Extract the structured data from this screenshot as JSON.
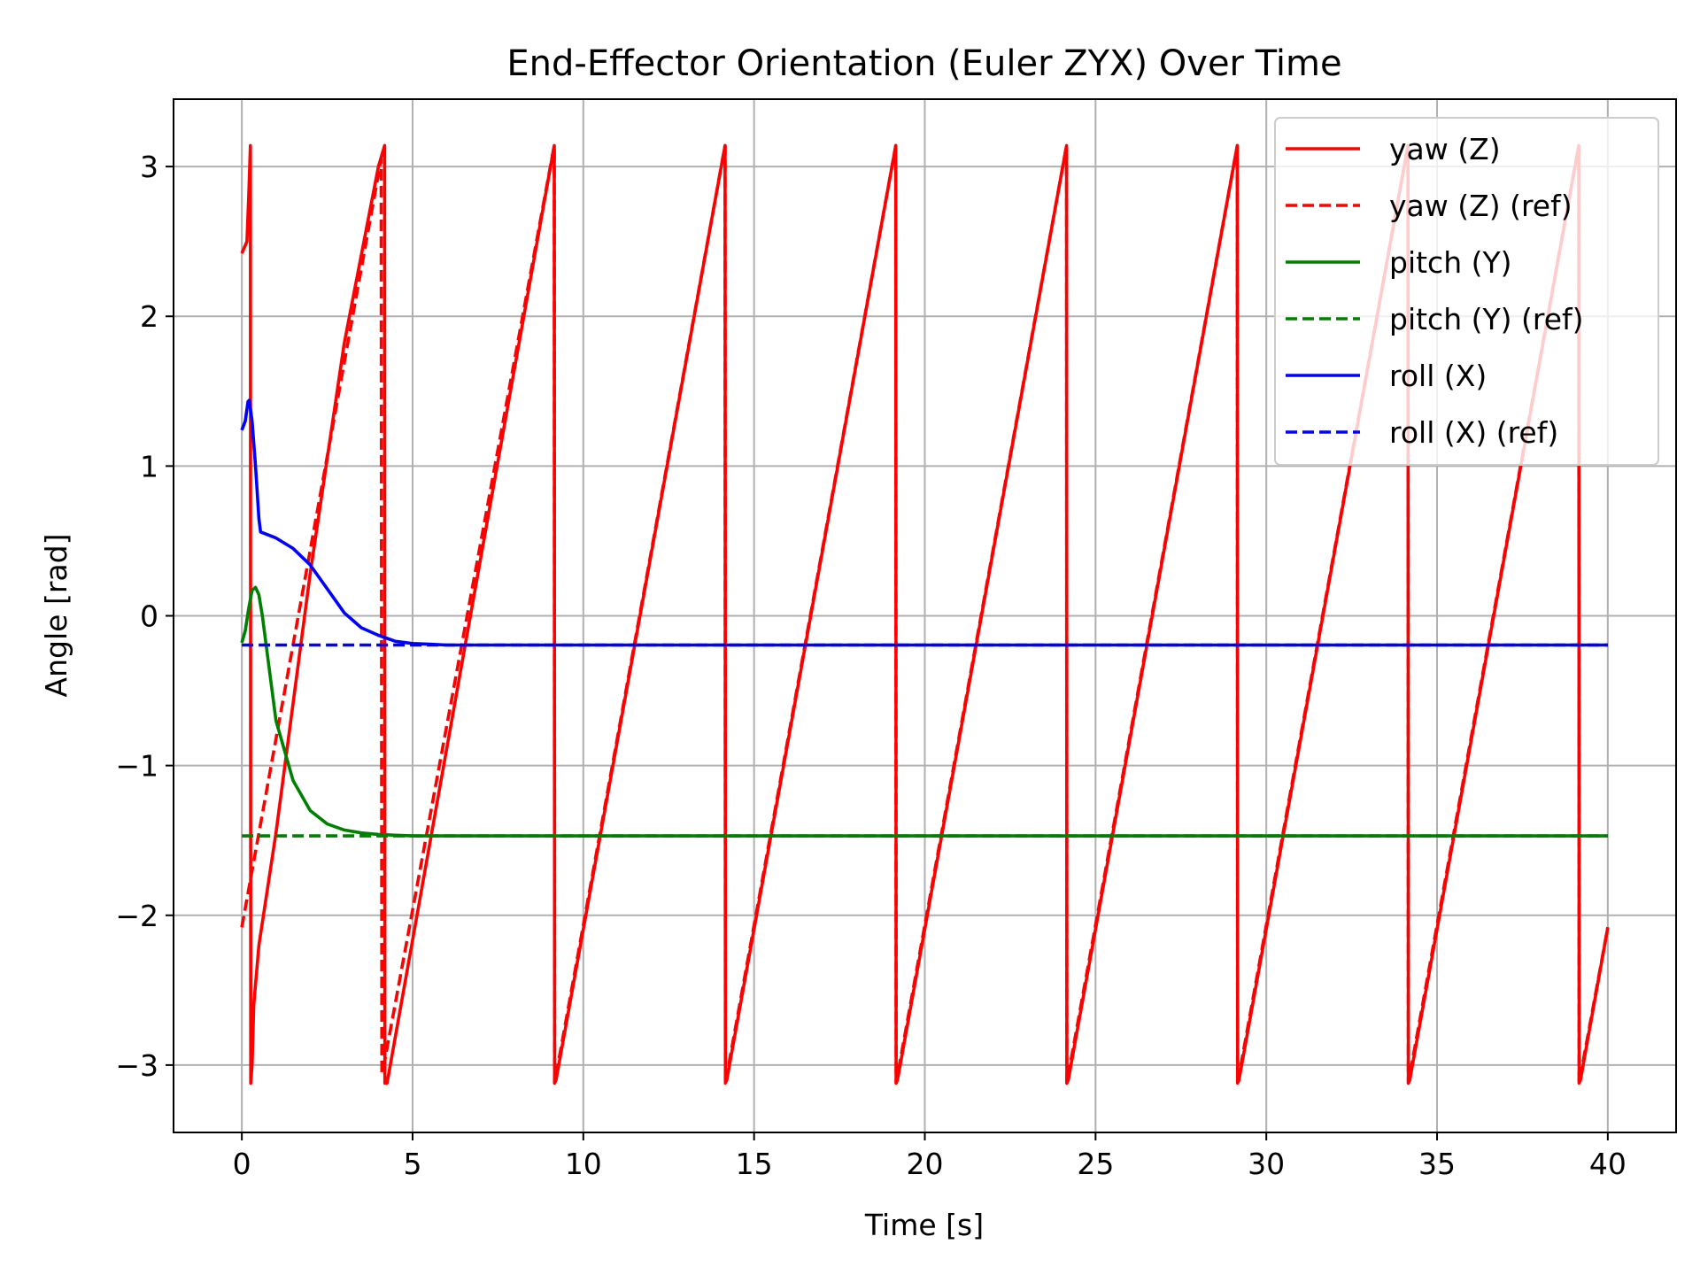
{
  "chart_data": {
    "type": "line",
    "title": "End-Effector Orientation (Euler ZYX) Over Time",
    "xlabel": "Time [s]",
    "ylabel": "Angle [rad]",
    "xlim": [
      -2,
      42
    ],
    "ylim": [
      -3.45,
      3.45
    ],
    "xticks": [
      0,
      5,
      10,
      15,
      20,
      25,
      30,
      35,
      40
    ],
    "xtick_labels": [
      "0",
      "5",
      "10",
      "15",
      "20",
      "25",
      "30",
      "35",
      "40"
    ],
    "yticks": [
      -3,
      -2,
      -1,
      0,
      1,
      2,
      3
    ],
    "ytick_labels": [
      "−3",
      "−2",
      "−1",
      "0",
      "1",
      "2",
      "3"
    ],
    "grid": true,
    "legend_position": "top-right",
    "series": [
      {
        "name": "yaw (Z)",
        "color": "#ff0000",
        "style": "solid",
        "x": [
          0,
          0.15,
          0.2,
          0.25,
          0.26,
          0.3,
          0.35,
          0.5,
          1.0,
          2.0,
          3.0,
          4.0,
          4.18,
          4.19,
          4.25,
          4.3,
          9.15,
          9.16,
          9.2,
          14.15,
          14.16,
          14.2,
          19.15,
          19.16,
          19.2,
          24.15,
          24.16,
          24.2,
          29.15,
          29.16,
          29.2,
          34.15,
          34.16,
          34.2,
          39.15,
          39.16,
          39.2,
          40.0
        ],
        "y": [
          2.42,
          2.5,
          2.8,
          3.14,
          -3.12,
          -3.0,
          -2.6,
          -2.2,
          -1.45,
          0.28,
          1.82,
          3.0,
          3.14,
          -3.12,
          -3.12,
          -3.06,
          3.14,
          -3.12,
          -3.1,
          3.14,
          -3.12,
          -3.1,
          3.14,
          -3.12,
          -3.1,
          3.14,
          -3.12,
          -3.1,
          3.14,
          -3.12,
          -3.1,
          3.14,
          -3.12,
          -3.1,
          3.14,
          -3.12,
          -3.1,
          -2.08
        ]
      },
      {
        "name": "yaw (Z) (ref)",
        "color": "#ff0000",
        "style": "dashed",
        "x": [
          0,
          4.08,
          4.1,
          4.12,
          9.15,
          9.16,
          14.15,
          14.16,
          19.15,
          19.16,
          24.15,
          24.16,
          29.15,
          29.16,
          34.15,
          34.16,
          39.15,
          39.16,
          40.0
        ],
        "y": [
          -2.08,
          3.05,
          -3.05,
          -3.05,
          3.14,
          -3.12,
          3.14,
          -3.12,
          3.14,
          -3.12,
          3.14,
          -3.12,
          3.14,
          -3.12,
          3.14,
          -3.12,
          3.14,
          -3.12,
          -2.08
        ]
      },
      {
        "name": "pitch (Y)",
        "color": "#008000",
        "style": "solid",
        "x": [
          0,
          0.1,
          0.2,
          0.3,
          0.4,
          0.5,
          0.6,
          0.8,
          1.0,
          1.5,
          2.0,
          2.5,
          3.0,
          3.5,
          4.0,
          4.5,
          5.0,
          6.0,
          8.0,
          12.0,
          20.0,
          30.0,
          40.0
        ],
        "y": [
          -0.18,
          -0.1,
          0.05,
          0.17,
          0.19,
          0.14,
          0.0,
          -0.35,
          -0.7,
          -1.1,
          -1.3,
          -1.39,
          -1.43,
          -1.45,
          -1.46,
          -1.465,
          -1.47,
          -1.47,
          -1.47,
          -1.47,
          -1.47,
          -1.47,
          -1.47
        ]
      },
      {
        "name": "pitch (Y) (ref)",
        "color": "#008000",
        "style": "dashed",
        "x": [
          0,
          40.0
        ],
        "y": [
          -1.47,
          -1.47
        ]
      },
      {
        "name": "roll (X)",
        "color": "#0000ff",
        "style": "solid",
        "x": [
          0,
          0.1,
          0.18,
          0.22,
          0.3,
          0.4,
          0.5,
          0.55,
          1.0,
          1.5,
          2.0,
          2.5,
          3.0,
          3.5,
          4.0,
          4.5,
          5.0,
          5.5,
          6.0,
          7.0,
          8.0,
          10.0,
          15.0,
          20.0,
          25.0,
          30.0,
          35.0,
          40.0
        ],
        "y": [
          1.24,
          1.3,
          1.43,
          1.44,
          1.3,
          1.0,
          0.65,
          0.56,
          0.52,
          0.45,
          0.34,
          0.18,
          0.02,
          -0.08,
          -0.13,
          -0.17,
          -0.185,
          -0.19,
          -0.195,
          -0.195,
          -0.195,
          -0.195,
          -0.195,
          -0.195,
          -0.195,
          -0.195,
          -0.195,
          -0.195
        ]
      },
      {
        "name": "roll (X) (ref)",
        "color": "#0000ff",
        "style": "dashed",
        "x": [
          0,
          40.0
        ],
        "y": [
          -0.195,
          -0.195
        ]
      }
    ]
  }
}
